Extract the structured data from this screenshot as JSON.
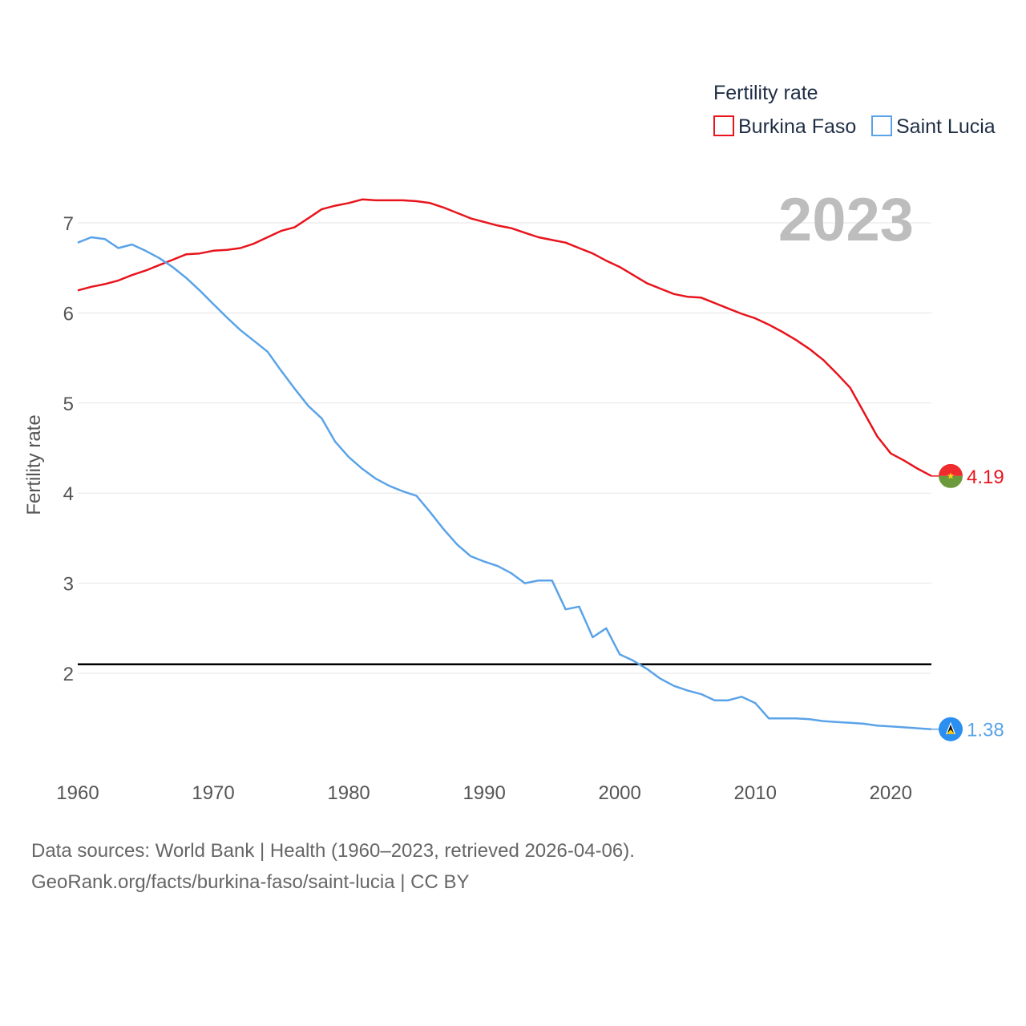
{
  "chart_data": {
    "type": "line",
    "title": "",
    "xlabel": "",
    "ylabel": "Fertility rate",
    "xlim": [
      1960,
      2023
    ],
    "ylim": [
      1,
      7.6
    ],
    "x_ticks": [
      1960,
      1970,
      1980,
      1990,
      2000,
      2010,
      2020
    ],
    "y_ticks": [
      2,
      3,
      4,
      5,
      6,
      7
    ],
    "grid": true,
    "current_year": "2023",
    "legend": {
      "title": "Fertility rate",
      "placement": "top-right"
    },
    "reference_line": {
      "value": 2.1,
      "color": "#000000"
    },
    "x": [
      1960,
      1961,
      1962,
      1963,
      1964,
      1965,
      1966,
      1967,
      1968,
      1969,
      1970,
      1971,
      1972,
      1973,
      1974,
      1975,
      1976,
      1977,
      1978,
      1979,
      1980,
      1981,
      1982,
      1983,
      1984,
      1985,
      1986,
      1987,
      1988,
      1989,
      1990,
      1991,
      1992,
      1993,
      1994,
      1995,
      1996,
      1997,
      1998,
      1999,
      2000,
      2001,
      2002,
      2003,
      2004,
      2005,
      2006,
      2007,
      2008,
      2009,
      2010,
      2011,
      2012,
      2013,
      2014,
      2015,
      2016,
      2017,
      2018,
      2019,
      2020,
      2021,
      2022,
      2023
    ],
    "series": [
      {
        "name": "Burkina Faso",
        "color": "#e8141c",
        "end_label": "4.19",
        "values": [
          6.25,
          6.29,
          6.32,
          6.36,
          6.42,
          6.47,
          6.53,
          6.59,
          6.65,
          6.66,
          6.69,
          6.7,
          6.72,
          6.77,
          6.84,
          6.91,
          6.95,
          7.05,
          7.15,
          7.19,
          7.22,
          7.26,
          7.25,
          7.25,
          7.25,
          7.24,
          7.22,
          7.17,
          7.11,
          7.05,
          7.01,
          6.97,
          6.94,
          6.89,
          6.84,
          6.81,
          6.78,
          6.72,
          6.66,
          6.58,
          6.51,
          6.42,
          6.33,
          6.27,
          6.21,
          6.18,
          6.17,
          6.11,
          6.05,
          5.99,
          5.94,
          5.87,
          5.79,
          5.7,
          5.6,
          5.48,
          5.33,
          5.17,
          4.9,
          4.63,
          4.44,
          4.36,
          4.27,
          4.19
        ]
      },
      {
        "name": "Saint Lucia",
        "color": "#5aa3e8",
        "end_label": "1.38",
        "values": [
          6.78,
          6.84,
          6.82,
          6.72,
          6.76,
          6.69,
          6.61,
          6.51,
          6.39,
          6.25,
          6.1,
          5.95,
          5.81,
          5.69,
          5.57,
          5.36,
          5.16,
          4.97,
          4.83,
          4.57,
          4.4,
          4.27,
          4.16,
          4.08,
          4.02,
          3.97,
          3.79,
          3.6,
          3.43,
          3.3,
          3.24,
          3.19,
          3.11,
          3,
          3.03,
          3.03,
          2.71,
          2.74,
          2.4,
          2.5,
          2.21,
          2.14,
          2.05,
          1.94,
          1.86,
          1.81,
          1.77,
          1.7,
          1.7,
          1.74,
          1.67,
          1.5,
          1.5,
          1.5,
          1.49,
          1.47,
          1.46,
          1.45,
          1.44,
          1.42,
          1.41,
          1.4,
          1.39,
          1.38
        ]
      }
    ],
    "source_lines": [
      "Data sources: World Bank | Health (1960–2023, retrieved 2026-04-06).",
      "GeoRank.org/facts/burkina-faso/saint-lucia | CC BY"
    ]
  }
}
